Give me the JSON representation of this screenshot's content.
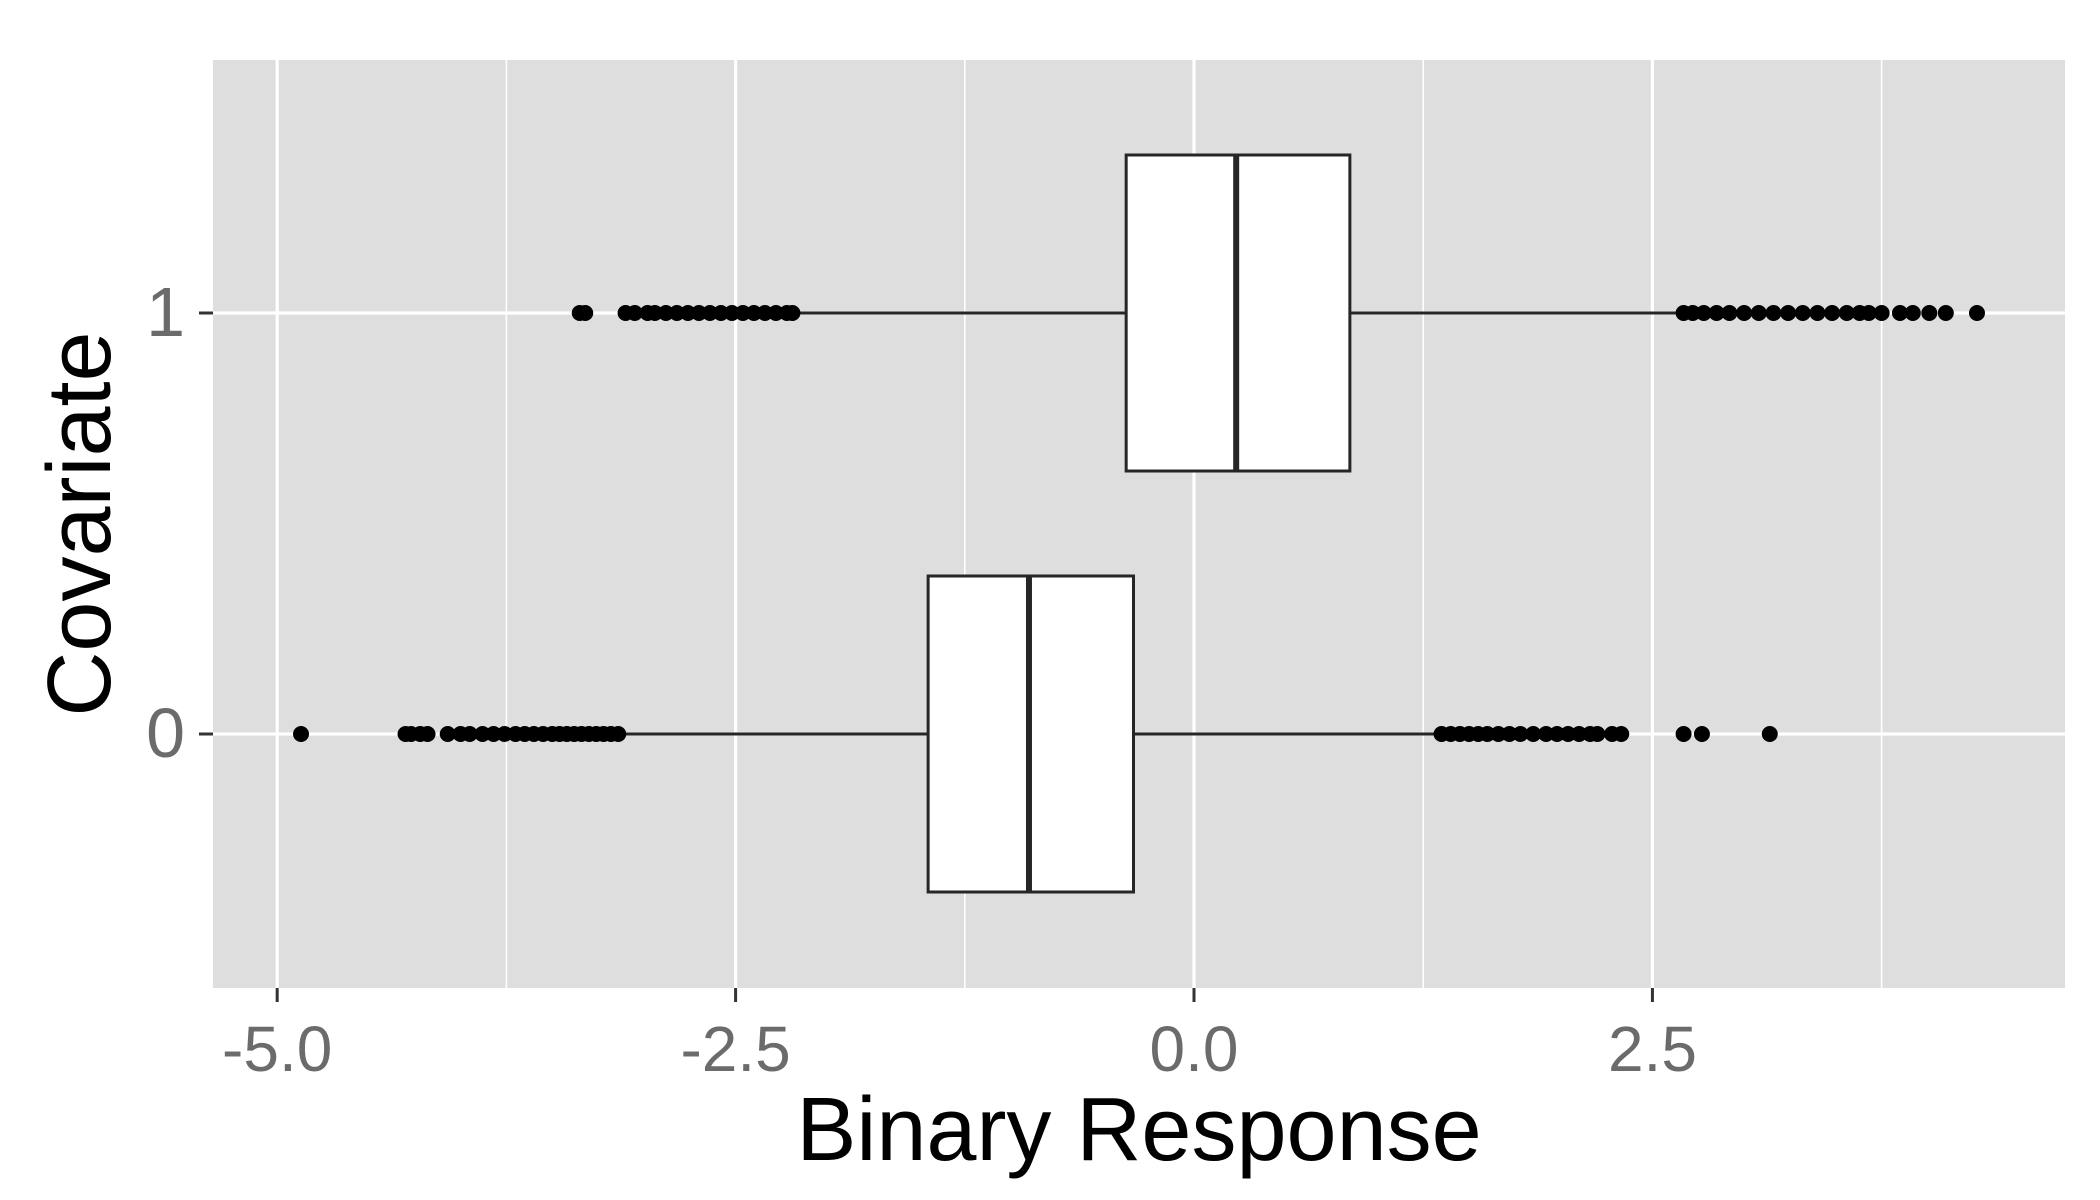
{
  "chart_data": {
    "type": "boxplot",
    "orientation": "horizontal",
    "title": "",
    "xlabel": "Binary Response",
    "ylabel": "Covariate",
    "xlim": [
      -5.35,
      4.75
    ],
    "x_ticks": [
      -5.0,
      -2.5,
      0.0,
      2.5
    ],
    "x_tick_labels": [
      "-5.0",
      "-2.5",
      "0.0",
      "2.5"
    ],
    "x_minor_ticks": [
      -3.75,
      -1.25,
      1.25,
      3.75
    ],
    "categories": [
      "0",
      "1"
    ],
    "grid": true,
    "legend": "none",
    "colors": {
      "panel": "#dedede",
      "grid": "#ffffff",
      "box_fill": "#ffffff",
      "box_stroke": "#262626",
      "outlier": "#000000",
      "tick_label": "#6b6b6b",
      "axis_title": "#000000"
    },
    "boxes": [
      {
        "category": "0",
        "whisker_low": -3.1,
        "q1": -1.45,
        "median": -0.9,
        "q3": -0.33,
        "whisker_high": 1.32,
        "outliers": [
          -4.87,
          -4.3,
          -4.27,
          -4.22,
          -4.18,
          -4.07,
          -4.0,
          -3.95,
          -3.88,
          -3.82,
          -3.76,
          -3.7,
          -3.65,
          -3.6,
          -3.55,
          -3.5,
          -3.46,
          -3.42,
          -3.38,
          -3.34,
          -3.3,
          -3.26,
          -3.22,
          -3.18,
          -3.14,
          1.35,
          1.4,
          1.45,
          1.5,
          1.55,
          1.6,
          1.66,
          1.72,
          1.78,
          1.85,
          1.92,
          1.98,
          2.04,
          2.1,
          2.16,
          2.2,
          2.28,
          2.33,
          2.67,
          2.77,
          3.14
        ]
      },
      {
        "category": "1",
        "whisker_low": -2.17,
        "q1": -0.37,
        "median": 0.23,
        "q3": 0.85,
        "whisker_high": 2.65,
        "outliers": [
          -3.35,
          -3.32,
          -3.1,
          -3.05,
          -2.98,
          -2.94,
          -2.88,
          -2.82,
          -2.76,
          -2.7,
          -2.64,
          -2.58,
          -2.52,
          -2.46,
          -2.4,
          -2.34,
          -2.28,
          -2.22,
          -2.19,
          2.67,
          2.72,
          2.78,
          2.85,
          2.92,
          3.0,
          3.08,
          3.16,
          3.24,
          3.32,
          3.4,
          3.48,
          3.56,
          3.63,
          3.68,
          3.75,
          3.85,
          3.92,
          4.01,
          4.1,
          4.27
        ]
      }
    ]
  }
}
